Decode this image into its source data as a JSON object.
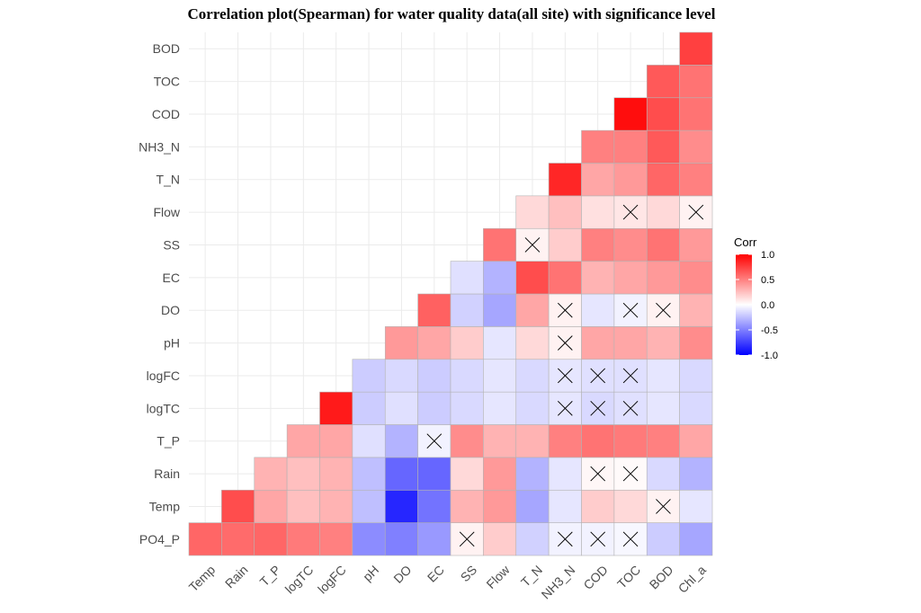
{
  "chart_data": {
    "type": "heatmap",
    "title": "Correlation plot(Spearman) for water quality data(all site) with significance level",
    "variables": [
      "Temp",
      "Rain",
      "T_P",
      "logTC",
      "logFC",
      "pH",
      "DO",
      "EC",
      "SS",
      "Flow",
      "T_N",
      "NH3_N",
      "COD",
      "TOC",
      "BOD",
      "Chl_a"
    ],
    "x_labels": [
      "Temp",
      "Rain",
      "T_P",
      "logTC",
      "logFC",
      "pH",
      "DO",
      "EC",
      "SS",
      "Flow",
      "T_N",
      "NH3_N",
      "COD",
      "TOC",
      "BOD",
      "Chl_a"
    ],
    "y_labels": [
      "PO4_P",
      "Temp",
      "Rain",
      "T_P",
      "logTC",
      "logFC",
      "pH",
      "DO",
      "EC",
      "SS",
      "Flow",
      "T_N",
      "NH3_N",
      "COD",
      "TOC",
      "BOD"
    ],
    "cells": [
      {
        "x": "Temp",
        "y": "PO4_P",
        "value": 0.6,
        "sig": true
      },
      {
        "x": "Rain",
        "y": "PO4_P",
        "value": 0.58,
        "sig": true
      },
      {
        "x": "T_P",
        "y": "PO4_P",
        "value": 0.6,
        "sig": true
      },
      {
        "x": "logTC",
        "y": "PO4_P",
        "value": 0.52,
        "sig": true
      },
      {
        "x": "logFC",
        "y": "PO4_P",
        "value": 0.5,
        "sig": true
      },
      {
        "x": "pH",
        "y": "PO4_P",
        "value": -0.45,
        "sig": true
      },
      {
        "x": "DO",
        "y": "PO4_P",
        "value": -0.5,
        "sig": true
      },
      {
        "x": "EC",
        "y": "PO4_P",
        "value": -0.4,
        "sig": true
      },
      {
        "x": "SS",
        "y": "PO4_P",
        "value": 0.05,
        "sig": false
      },
      {
        "x": "Flow",
        "y": "PO4_P",
        "value": 0.2,
        "sig": true
      },
      {
        "x": "T_N",
        "y": "PO4_P",
        "value": -0.18,
        "sig": true
      },
      {
        "x": "NH3_N",
        "y": "PO4_P",
        "value": -0.05,
        "sig": false
      },
      {
        "x": "COD",
        "y": "PO4_P",
        "value": -0.05,
        "sig": false
      },
      {
        "x": "TOC",
        "y": "PO4_P",
        "value": -0.03,
        "sig": false
      },
      {
        "x": "BOD",
        "y": "PO4_P",
        "value": -0.2,
        "sig": true
      },
      {
        "x": "Chl_a",
        "y": "PO4_P",
        "value": -0.35,
        "sig": true
      },
      {
        "x": "Rain",
        "y": "Temp",
        "value": 0.7,
        "sig": true
      },
      {
        "x": "T_P",
        "y": "Temp",
        "value": 0.35,
        "sig": true
      },
      {
        "x": "logTC",
        "y": "Temp",
        "value": 0.25,
        "sig": true
      },
      {
        "x": "logFC",
        "y": "Temp",
        "value": 0.3,
        "sig": true
      },
      {
        "x": "pH",
        "y": "Temp",
        "value": -0.25,
        "sig": true
      },
      {
        "x": "DO",
        "y": "Temp",
        "value": -0.85,
        "sig": true
      },
      {
        "x": "EC",
        "y": "Temp",
        "value": -0.55,
        "sig": true
      },
      {
        "x": "SS",
        "y": "Temp",
        "value": 0.3,
        "sig": true
      },
      {
        "x": "Flow",
        "y": "Temp",
        "value": 0.4,
        "sig": true
      },
      {
        "x": "T_N",
        "y": "Temp",
        "value": -0.35,
        "sig": true
      },
      {
        "x": "NH3_N",
        "y": "Temp",
        "value": -0.1,
        "sig": true
      },
      {
        "x": "COD",
        "y": "Temp",
        "value": 0.2,
        "sig": true
      },
      {
        "x": "TOC",
        "y": "Temp",
        "value": 0.15,
        "sig": true
      },
      {
        "x": "BOD",
        "y": "Temp",
        "value": 0.05,
        "sig": false
      },
      {
        "x": "Chl_a",
        "y": "Temp",
        "value": -0.1,
        "sig": true
      },
      {
        "x": "T_P",
        "y": "Rain",
        "value": 0.3,
        "sig": true
      },
      {
        "x": "logTC",
        "y": "Rain",
        "value": 0.25,
        "sig": true
      },
      {
        "x": "logFC",
        "y": "Rain",
        "value": 0.3,
        "sig": true
      },
      {
        "x": "pH",
        "y": "Rain",
        "value": -0.25,
        "sig": true
      },
      {
        "x": "DO",
        "y": "Rain",
        "value": -0.6,
        "sig": true
      },
      {
        "x": "EC",
        "y": "Rain",
        "value": -0.6,
        "sig": true
      },
      {
        "x": "SS",
        "y": "Rain",
        "value": 0.15,
        "sig": true
      },
      {
        "x": "Flow",
        "y": "Rain",
        "value": 0.4,
        "sig": true
      },
      {
        "x": "T_N",
        "y": "Rain",
        "value": -0.3,
        "sig": true
      },
      {
        "x": "NH3_N",
        "y": "Rain",
        "value": -0.1,
        "sig": true
      },
      {
        "x": "COD",
        "y": "Rain",
        "value": 0.03,
        "sig": false
      },
      {
        "x": "TOC",
        "y": "Rain",
        "value": 0.02,
        "sig": false
      },
      {
        "x": "BOD",
        "y": "Rain",
        "value": -0.15,
        "sig": true
      },
      {
        "x": "Chl_a",
        "y": "Rain",
        "value": -0.3,
        "sig": true
      },
      {
        "x": "logTC",
        "y": "T_P",
        "value": 0.35,
        "sig": true
      },
      {
        "x": "logFC",
        "y": "T_P",
        "value": 0.35,
        "sig": true
      },
      {
        "x": "pH",
        "y": "T_P",
        "value": -0.12,
        "sig": true
      },
      {
        "x": "DO",
        "y": "T_P",
        "value": -0.3,
        "sig": true
      },
      {
        "x": "EC",
        "y": "T_P",
        "value": -0.05,
        "sig": false
      },
      {
        "x": "SS",
        "y": "T_P",
        "value": 0.45,
        "sig": true
      },
      {
        "x": "Flow",
        "y": "T_P",
        "value": 0.3,
        "sig": true
      },
      {
        "x": "T_N",
        "y": "T_P",
        "value": 0.3,
        "sig": true
      },
      {
        "x": "NH3_N",
        "y": "T_P",
        "value": 0.5,
        "sig": true
      },
      {
        "x": "COD",
        "y": "T_P",
        "value": 0.55,
        "sig": true
      },
      {
        "x": "TOC",
        "y": "T_P",
        "value": 0.52,
        "sig": true
      },
      {
        "x": "BOD",
        "y": "T_P",
        "value": 0.5,
        "sig": true
      },
      {
        "x": "Chl_a",
        "y": "T_P",
        "value": 0.35,
        "sig": true
      },
      {
        "x": "logFC",
        "y": "logTC",
        "value": 0.9,
        "sig": true
      },
      {
        "x": "pH",
        "y": "logTC",
        "value": -0.2,
        "sig": true
      },
      {
        "x": "DO",
        "y": "logTC",
        "value": -0.12,
        "sig": true
      },
      {
        "x": "EC",
        "y": "logTC",
        "value": -0.2,
        "sig": true
      },
      {
        "x": "SS",
        "y": "logTC",
        "value": -0.15,
        "sig": true
      },
      {
        "x": "Flow",
        "y": "logTC",
        "value": -0.1,
        "sig": true
      },
      {
        "x": "T_N",
        "y": "logTC",
        "value": -0.15,
        "sig": true
      },
      {
        "x": "NH3_N",
        "y": "logTC",
        "value": -0.1,
        "sig": false
      },
      {
        "x": "COD",
        "y": "logTC",
        "value": -0.15,
        "sig": false
      },
      {
        "x": "TOC",
        "y": "logTC",
        "value": -0.12,
        "sig": false
      },
      {
        "x": "BOD",
        "y": "logTC",
        "value": -0.1,
        "sig": true
      },
      {
        "x": "Chl_a",
        "y": "logTC",
        "value": -0.15,
        "sig": true
      },
      {
        "x": "pH",
        "y": "logFC",
        "value": -0.2,
        "sig": true
      },
      {
        "x": "DO",
        "y": "logFC",
        "value": -0.15,
        "sig": true
      },
      {
        "x": "EC",
        "y": "logFC",
        "value": -0.2,
        "sig": true
      },
      {
        "x": "SS",
        "y": "logFC",
        "value": -0.15,
        "sig": true
      },
      {
        "x": "Flow",
        "y": "logFC",
        "value": -0.1,
        "sig": true
      },
      {
        "x": "T_N",
        "y": "logFC",
        "value": -0.15,
        "sig": true
      },
      {
        "x": "NH3_N",
        "y": "logFC",
        "value": -0.1,
        "sig": false
      },
      {
        "x": "COD",
        "y": "logFC",
        "value": -0.12,
        "sig": false
      },
      {
        "x": "TOC",
        "y": "logFC",
        "value": -0.12,
        "sig": false
      },
      {
        "x": "BOD",
        "y": "logFC",
        "value": -0.1,
        "sig": true
      },
      {
        "x": "Chl_a",
        "y": "logFC",
        "value": -0.15,
        "sig": true
      },
      {
        "x": "DO",
        "y": "pH",
        "value": 0.4,
        "sig": true
      },
      {
        "x": "EC",
        "y": "pH",
        "value": 0.35,
        "sig": true
      },
      {
        "x": "SS",
        "y": "pH",
        "value": 0.2,
        "sig": true
      },
      {
        "x": "Flow",
        "y": "pH",
        "value": -0.1,
        "sig": true
      },
      {
        "x": "T_N",
        "y": "pH",
        "value": 0.15,
        "sig": true
      },
      {
        "x": "NH3_N",
        "y": "pH",
        "value": 0.05,
        "sig": false
      },
      {
        "x": "COD",
        "y": "pH",
        "value": 0.35,
        "sig": true
      },
      {
        "x": "TOC",
        "y": "pH",
        "value": 0.35,
        "sig": true
      },
      {
        "x": "BOD",
        "y": "pH",
        "value": 0.3,
        "sig": true
      },
      {
        "x": "Chl_a",
        "y": "pH",
        "value": 0.45,
        "sig": true
      },
      {
        "x": "EC",
        "y": "DO",
        "value": 0.62,
        "sig": true
      },
      {
        "x": "SS",
        "y": "DO",
        "value": -0.18,
        "sig": true
      },
      {
        "x": "Flow",
        "y": "DO",
        "value": -0.35,
        "sig": true
      },
      {
        "x": "T_N",
        "y": "DO",
        "value": 0.35,
        "sig": true
      },
      {
        "x": "NH3_N",
        "y": "DO",
        "value": 0.05,
        "sig": false
      },
      {
        "x": "COD",
        "y": "DO",
        "value": -0.1,
        "sig": true
      },
      {
        "x": "TOC",
        "y": "DO",
        "value": -0.05,
        "sig": false
      },
      {
        "x": "BOD",
        "y": "DO",
        "value": 0.05,
        "sig": false
      },
      {
        "x": "Chl_a",
        "y": "DO",
        "value": 0.3,
        "sig": true
      },
      {
        "x": "SS",
        "y": "EC",
        "value": -0.12,
        "sig": true
      },
      {
        "x": "Flow",
        "y": "EC",
        "value": -0.3,
        "sig": true
      },
      {
        "x": "T_N",
        "y": "EC",
        "value": 0.7,
        "sig": true
      },
      {
        "x": "NH3_N",
        "y": "EC",
        "value": 0.55,
        "sig": true
      },
      {
        "x": "COD",
        "y": "EC",
        "value": 0.3,
        "sig": true
      },
      {
        "x": "TOC",
        "y": "EC",
        "value": 0.35,
        "sig": true
      },
      {
        "x": "BOD",
        "y": "EC",
        "value": 0.4,
        "sig": true
      },
      {
        "x": "Chl_a",
        "y": "EC",
        "value": 0.45,
        "sig": true
      },
      {
        "x": "Flow",
        "y": "SS",
        "value": 0.55,
        "sig": true
      },
      {
        "x": "T_N",
        "y": "SS",
        "value": 0.05,
        "sig": false
      },
      {
        "x": "NH3_N",
        "y": "SS",
        "value": 0.2,
        "sig": true
      },
      {
        "x": "COD",
        "y": "SS",
        "value": 0.5,
        "sig": true
      },
      {
        "x": "TOC",
        "y": "SS",
        "value": 0.45,
        "sig": true
      },
      {
        "x": "BOD",
        "y": "SS",
        "value": 0.55,
        "sig": true
      },
      {
        "x": "Chl_a",
        "y": "SS",
        "value": 0.4,
        "sig": true
      },
      {
        "x": "T_N",
        "y": "Flow",
        "value": 0.15,
        "sig": true
      },
      {
        "x": "NH3_N",
        "y": "Flow",
        "value": 0.25,
        "sig": true
      },
      {
        "x": "COD",
        "y": "Flow",
        "value": 0.12,
        "sig": true
      },
      {
        "x": "TOC",
        "y": "Flow",
        "value": 0.1,
        "sig": false
      },
      {
        "x": "BOD",
        "y": "Flow",
        "value": 0.15,
        "sig": true
      },
      {
        "x": "Chl_a",
        "y": "Flow",
        "value": 0.05,
        "sig": false
      },
      {
        "x": "NH3_N",
        "y": "T_N",
        "value": 0.85,
        "sig": true
      },
      {
        "x": "COD",
        "y": "T_N",
        "value": 0.35,
        "sig": true
      },
      {
        "x": "TOC",
        "y": "T_N",
        "value": 0.4,
        "sig": true
      },
      {
        "x": "BOD",
        "y": "T_N",
        "value": 0.6,
        "sig": true
      },
      {
        "x": "Chl_a",
        "y": "T_N",
        "value": 0.5,
        "sig": true
      },
      {
        "x": "COD",
        "y": "NH3_N",
        "value": 0.5,
        "sig": true
      },
      {
        "x": "TOC",
        "y": "NH3_N",
        "value": 0.5,
        "sig": true
      },
      {
        "x": "BOD",
        "y": "NH3_N",
        "value": 0.65,
        "sig": true
      },
      {
        "x": "Chl_a",
        "y": "NH3_N",
        "value": 0.45,
        "sig": true
      },
      {
        "x": "TOC",
        "y": "COD",
        "value": 0.95,
        "sig": true
      },
      {
        "x": "BOD",
        "y": "COD",
        "value": 0.7,
        "sig": true
      },
      {
        "x": "Chl_a",
        "y": "COD",
        "value": 0.55,
        "sig": true
      },
      {
        "x": "BOD",
        "y": "TOC",
        "value": 0.65,
        "sig": true
      },
      {
        "x": "Chl_a",
        "y": "TOC",
        "value": 0.55,
        "sig": true
      },
      {
        "x": "Chl_a",
        "y": "BOD",
        "value": 0.75,
        "sig": true
      }
    ],
    "legend": {
      "title": "Corr",
      "ticks": [
        "1.0",
        "0.5",
        "0.0",
        "-0.5",
        "-1.0"
      ],
      "tick_values": [
        1.0,
        0.5,
        0.0,
        -0.5,
        -1.0
      ],
      "range": [
        -1,
        1
      ],
      "placement": "right",
      "colors": {
        "low": "#0000ff",
        "mid": "#ffffff",
        "high": "#ff0000"
      }
    },
    "nonsig_marker": "x-mark",
    "grid": true
  }
}
